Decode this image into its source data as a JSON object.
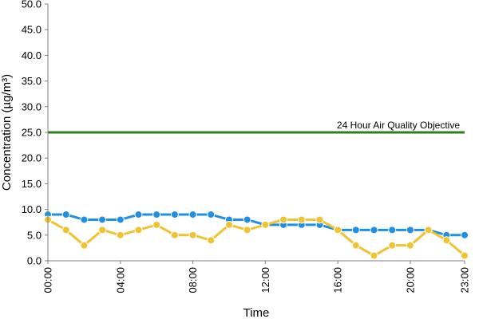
{
  "chart_data": {
    "type": "line",
    "xlabel": "Time",
    "ylabel": "Concentration (µg/m³)",
    "ylim": [
      0,
      50
    ],
    "y_ticks": [
      "0.0",
      "5.0",
      "10.0",
      "15.0",
      "20.0",
      "25.0",
      "30.0",
      "35.0",
      "40.0",
      "45.0",
      "50.0"
    ],
    "x_tick_labels": [
      "00:00",
      "04:00",
      "08:00",
      "12:00",
      "16:00",
      "20:00",
      "23:00"
    ],
    "x_tick_hours": [
      0,
      4,
      8,
      12,
      16,
      20,
      23
    ],
    "x": [
      "00:00",
      "01:00",
      "02:00",
      "03:00",
      "04:00",
      "05:00",
      "06:00",
      "07:00",
      "08:00",
      "09:00",
      "10:00",
      "11:00",
      "12:00",
      "13:00",
      "14:00",
      "15:00",
      "16:00",
      "17:00",
      "18:00",
      "19:00",
      "20:00",
      "21:00",
      "22:00",
      "23:00"
    ],
    "grid": false,
    "series": [
      {
        "color": "#1e90e6",
        "values": [
          9,
          9,
          8,
          8,
          8,
          9,
          9,
          9,
          9,
          9,
          8,
          8,
          7,
          7,
          7,
          7,
          6,
          6,
          6,
          6,
          6,
          6,
          5,
          5
        ]
      },
      {
        "color": "#f0c330",
        "values": [
          8,
          6,
          3,
          6,
          5,
          6,
          7,
          5,
          5,
          4,
          7,
          6,
          7,
          8,
          8,
          8,
          6,
          3,
          1,
          3,
          3,
          6,
          4,
          1
        ]
      }
    ],
    "reference_line": {
      "value": 25,
      "label": "24 Hour Air Quality Objective",
      "color": "#2e7d1e"
    }
  }
}
